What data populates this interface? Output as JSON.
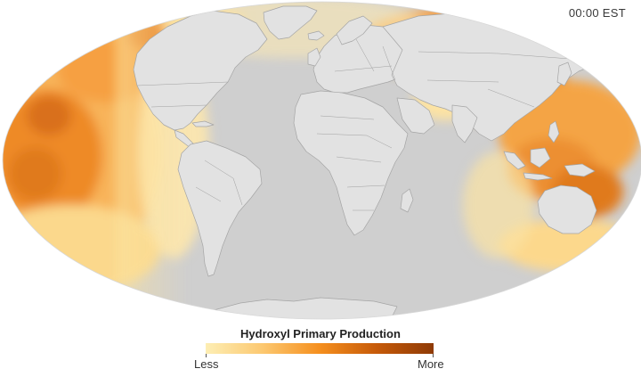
{
  "time_label": "00:00 EST",
  "legend": {
    "title": "Hydroxyl Primary Production",
    "min_label": "Less",
    "max_label": "More",
    "gradient_stops": [
      "#fdeeb4",
      "#fcc870",
      "#f58f1e",
      "#c65a09",
      "#8e3a06"
    ]
  },
  "colors": {
    "land": "#e2e2e2",
    "ocean_base": "#cccccc",
    "country_border": "#9c9c9c",
    "low": "#fdeeb4",
    "mid": "#f6a43c",
    "high": "#a84405"
  }
}
